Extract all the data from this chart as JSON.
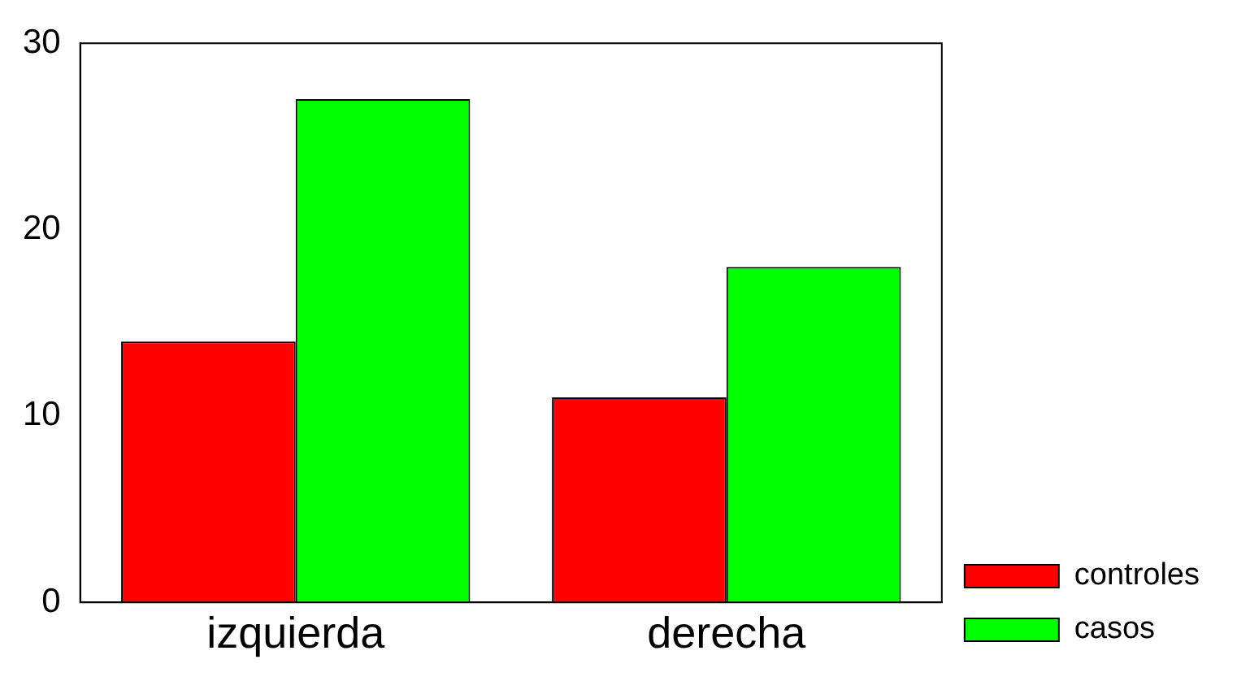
{
  "chart_data": {
    "type": "bar",
    "categories": [
      "izquierda",
      "derecha"
    ],
    "series": [
      {
        "name": "controles",
        "color": "#ff0000",
        "values": [
          14,
          11
        ]
      },
      {
        "name": "casos",
        "color": "#00ff00",
        "values": [
          27,
          18
        ]
      }
    ],
    "ylim": [
      0,
      30
    ],
    "yticks": [
      0,
      10,
      20,
      30
    ],
    "grid": false,
    "legend": "bottom right"
  }
}
